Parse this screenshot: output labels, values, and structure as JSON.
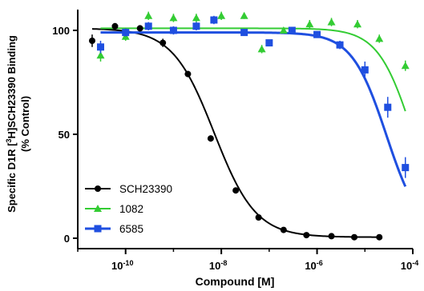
{
  "chart_data": {
    "type": "scatter",
    "xlabel": "Compound [M]",
    "ylabel_line1_prefix": "Specific D1R [",
    "ylabel_line1_sup": "3",
    "ylabel_line1_suffix": "H]SCH23390 Binding",
    "ylabel_line2": "(% Control)",
    "xscale": "log",
    "xlim": [
      1e-11,
      0.0001
    ],
    "ylim": [
      -5,
      110
    ],
    "yticks": [
      0,
      50,
      100
    ],
    "ytick_labels": [
      "0",
      "50",
      "100"
    ],
    "xticks": [
      1e-10,
      1e-08,
      1e-06,
      0.0001
    ],
    "xtick_bases": [
      "10",
      "10",
      "10",
      "10"
    ],
    "xtick_exps": [
      "-10",
      "-8",
      "-6",
      "-4"
    ],
    "grid": false,
    "legend_position": "bottom-left",
    "series": [
      {
        "name": "SCH23390",
        "color": "#000000",
        "marker": "circle",
        "x": [
          2e-11,
          6e-11,
          2e-10,
          6e-10,
          2e-09,
          6e-09,
          2e-08,
          6e-08,
          2e-07,
          6e-07,
          2e-06,
          6e-06,
          2e-05
        ],
        "y": [
          95,
          102,
          101,
          94,
          79,
          48,
          23,
          10,
          4,
          1.5,
          1,
          0.5,
          0.5
        ],
        "err": [
          3,
          1.5,
          1.5,
          2,
          1.5,
          1.5,
          1,
          0.5,
          0.5,
          0.5,
          0.5,
          0.5,
          0.5
        ],
        "fit": {
          "top": 101,
          "bottom": 0.5,
          "logec50": -8.15,
          "hill": 1.0
        }
      },
      {
        "name": "1082",
        "color": "#33cc33",
        "marker": "triangle",
        "x": [
          3e-11,
          1e-10,
          3e-10,
          1e-09,
          3e-09,
          1e-08,
          3e-08,
          7e-08,
          2e-07,
          7e-07,
          2e-06,
          7e-06,
          2e-05,
          7e-05
        ],
        "y": [
          88,
          97,
          107,
          106,
          106,
          107,
          107,
          91,
          100,
          103,
          104,
          103,
          96,
          83
        ],
        "err": [
          3,
          2,
          2,
          2,
          2,
          2,
          1.5,
          2,
          1.5,
          2,
          2,
          2,
          2,
          2.5
        ],
        "fit": {
          "top": 101,
          "bottom": 0,
          "logec50": -4.0,
          "hill": 1.2
        }
      },
      {
        "name": "6585",
        "color": "#1f4fe0",
        "marker": "square",
        "x": [
          3e-11,
          1e-10,
          3e-10,
          1e-09,
          3e-09,
          7e-09,
          3e-08,
          1e-07,
          3e-07,
          1e-06,
          3e-06,
          1e-05,
          3e-05,
          7e-05
        ],
        "y": [
          92,
          99,
          102,
          100,
          102,
          105,
          99,
          94,
          100,
          98,
          93,
          81,
          63,
          34
        ],
        "err": [
          3,
          2,
          2,
          2,
          2,
          2,
          1.5,
          1.5,
          1.5,
          1.5,
          2,
          4,
          5,
          5
        ],
        "fit": {
          "top": 99,
          "bottom": 0,
          "logec50": -4.55,
          "hill": 1.2
        }
      }
    ]
  }
}
